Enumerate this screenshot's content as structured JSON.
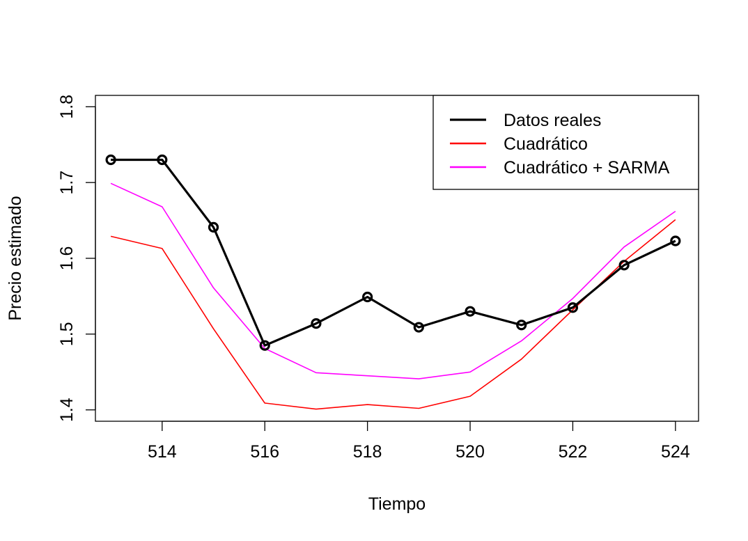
{
  "chart_data": {
    "type": "line",
    "title": "",
    "xlabel": "Tiempo",
    "ylabel": "Precio estimado",
    "xlim": [
      512.7,
      524.45
    ],
    "ylim": [
      1.385,
      1.815
    ],
    "x_ticks": [
      514,
      516,
      518,
      520,
      522,
      524
    ],
    "y_ticks": [
      1.4,
      1.5,
      1.6,
      1.7,
      1.8
    ],
    "x_tick_labels": [
      "514",
      "516",
      "518",
      "520",
      "522",
      "524"
    ],
    "y_tick_labels": [
      "1.4",
      "1.5",
      "1.6",
      "1.7",
      "1.8"
    ],
    "grid": false,
    "legend_position": "top-right",
    "x": [
      513,
      514,
      515,
      516,
      517,
      518,
      519,
      520,
      521,
      522,
      523,
      524
    ],
    "series": [
      {
        "name": "Datos reales",
        "color": "#000000",
        "markers": true,
        "values": [
          1.73,
          1.73,
          1.641,
          1.485,
          1.514,
          1.549,
          1.509,
          1.53,
          1.512,
          1.535,
          1.591,
          1.623
        ]
      },
      {
        "name": "Cuadrático",
        "color": "#ff0000",
        "markers": false,
        "values": [
          1.629,
          1.613,
          1.507,
          1.409,
          1.401,
          1.407,
          1.402,
          1.418,
          1.467,
          1.532,
          1.596,
          1.651
        ]
      },
      {
        "name": "Cuadrático + SARMA",
        "color": "#ff00ff",
        "markers": false,
        "values": [
          1.699,
          1.668,
          1.561,
          1.481,
          1.449,
          1.445,
          1.441,
          1.45,
          1.491,
          1.547,
          1.615,
          1.662
        ]
      }
    ]
  }
}
